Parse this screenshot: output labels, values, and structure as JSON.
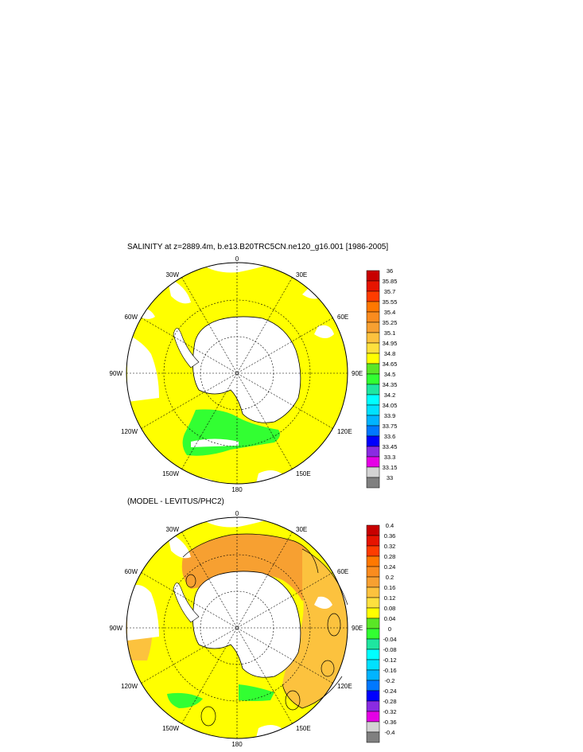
{
  "panel1": {
    "title": "SALINITY at z=2889.4m, b.e13.B20TRC5CN.ne120_g16.001 [1986-2005]",
    "lon_labels": [
      "0",
      "30E",
      "60E",
      "90E",
      "120E",
      "150E",
      "180",
      "150W",
      "120W",
      "90W",
      "60W",
      "30W"
    ],
    "colorbar": {
      "labels": [
        "36",
        "35.85",
        "35.7",
        "35.55",
        "35.4",
        "35.25",
        "35.1",
        "34.95",
        "34.8",
        "34.65",
        "34.5",
        "34.35",
        "34.2",
        "34.05",
        "33.9",
        "33.75",
        "33.6",
        "33.45",
        "33.3",
        "33.15",
        "33"
      ],
      "colors": [
        "#c80000",
        "#e61400",
        "#ff3c00",
        "#ff7800",
        "#fa8c1e",
        "#f7a031",
        "#fcc23e",
        "#fde03e",
        "#ffff00",
        "#5ae626",
        "#32ff32",
        "#1ee6a0",
        "#00ffff",
        "#00e1ff",
        "#00b4ff",
        "#0078ff",
        "#0000ff",
        "#8a2be2",
        "#e600e6",
        "#d3d3d3",
        "#808080"
      ]
    }
  },
  "panel2": {
    "title": "(MODEL - LEVITUS/PHC2)",
    "lon_labels": [
      "0",
      "30E",
      "60E",
      "90E",
      "120E",
      "150E",
      "180",
      "150W",
      "120W",
      "90W",
      "60W",
      "30W"
    ],
    "colorbar": {
      "labels": [
        "0.4",
        "0.36",
        "0.32",
        "0.28",
        "0.24",
        "0.2",
        "0.16",
        "0.12",
        "0.08",
        "0.04",
        "0",
        "-0.04",
        "-0.08",
        "-0.12",
        "-0.16",
        "-0.2",
        "-0.24",
        "-0.28",
        "-0.32",
        "-0.36",
        "-0.4"
      ],
      "colors": [
        "#c80000",
        "#e61400",
        "#ff3c00",
        "#ff7800",
        "#fa8c1e",
        "#f7a031",
        "#fcc23e",
        "#fde03e",
        "#ffff00",
        "#5ae626",
        "#32ff32",
        "#1ee6a0",
        "#00ffff",
        "#00e1ff",
        "#00b4ff",
        "#0078ff",
        "#0000ff",
        "#8a2be2",
        "#e600e6",
        "#d3d3d3",
        "#808080"
      ]
    }
  }
}
